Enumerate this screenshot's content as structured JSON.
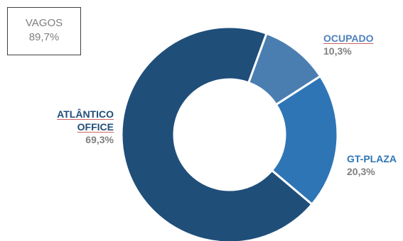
{
  "summary_box": {
    "label": "VAGOS",
    "value": "89,7%"
  },
  "chart_data": {
    "type": "pie",
    "title": "",
    "categories": [
      "ATLÂNTICO OFFICE",
      "OCUPADO",
      "GT-PLAZA"
    ],
    "values": [
      69.3,
      10.3,
      20.3
    ],
    "display_values": [
      "69,3%",
      "10,3%",
      "20,3%"
    ],
    "hole": "donut",
    "colors": [
      "#1f4e79",
      "#4a7eb1",
      "#2e75b6"
    ],
    "label_lines": {
      "atlantico": [
        "ATLÂNTICO",
        "OFFICE"
      ],
      "ocupado": "OCUPADO",
      "gtplaza": "GT-PLAZA"
    },
    "legend": "none"
  }
}
